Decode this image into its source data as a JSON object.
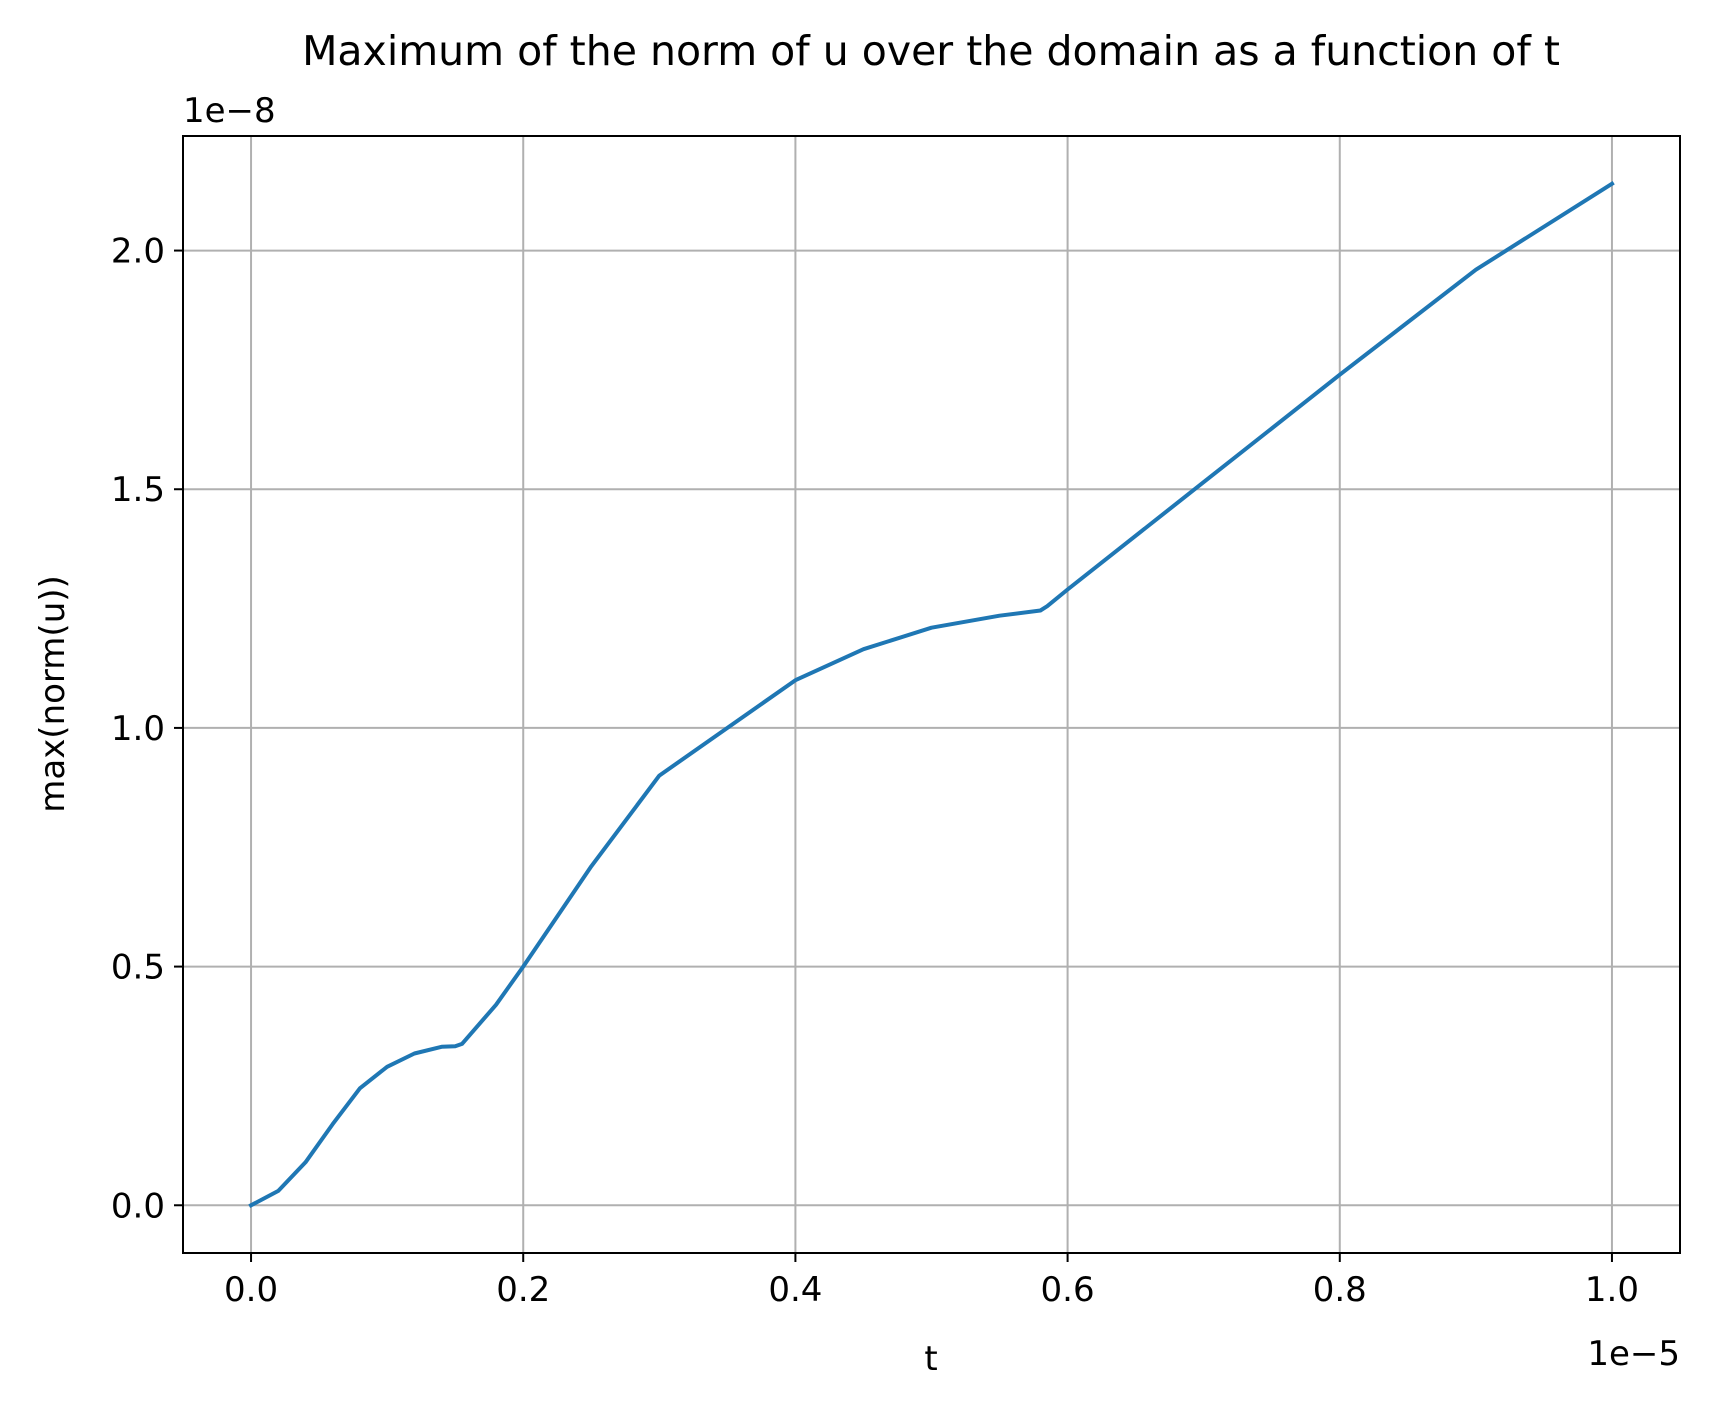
{
  "chart_data": {
    "type": "line",
    "title": "Maximum of the norm of u over the domain as a function of t",
    "xlabel": "t",
    "ylabel": "max(norm(u))",
    "x_offset_text": "1e−5",
    "y_offset_text": "1e−8",
    "xlim": [
      -0.05,
      1.05
    ],
    "ylim": [
      -0.1,
      2.24
    ],
    "xticks": [
      0.0,
      0.2,
      0.4,
      0.6,
      0.8,
      1.0
    ],
    "xtick_labels": [
      "0.0",
      "0.2",
      "0.4",
      "0.6",
      "0.8",
      "1.0"
    ],
    "yticks": [
      0.0,
      0.5,
      1.0,
      1.5,
      2.0
    ],
    "ytick_labels": [
      "0.0",
      "0.5",
      "1.0",
      "1.5",
      "2.0"
    ],
    "grid": true,
    "line_color": "#1f77b4",
    "grid_color": "#b0b0b0",
    "series": [
      {
        "x": [
          0.0,
          0.02,
          0.04,
          0.06,
          0.08,
          0.1,
          0.12,
          0.14,
          0.15,
          0.155,
          0.18,
          0.2,
          0.25,
          0.3,
          0.35,
          0.4,
          0.45,
          0.5,
          0.55,
          0.58,
          0.585,
          0.6,
          0.7,
          0.8,
          0.9,
          1.0
        ],
        "y": [
          0.0,
          0.03,
          0.09,
          0.17,
          0.245,
          0.29,
          0.318,
          0.332,
          0.333,
          0.338,
          0.42,
          0.5,
          0.71,
          0.9,
          1.0,
          1.1,
          1.165,
          1.21,
          1.235,
          1.246,
          1.255,
          1.29,
          1.515,
          1.74,
          1.96,
          2.14
        ]
      }
    ]
  }
}
